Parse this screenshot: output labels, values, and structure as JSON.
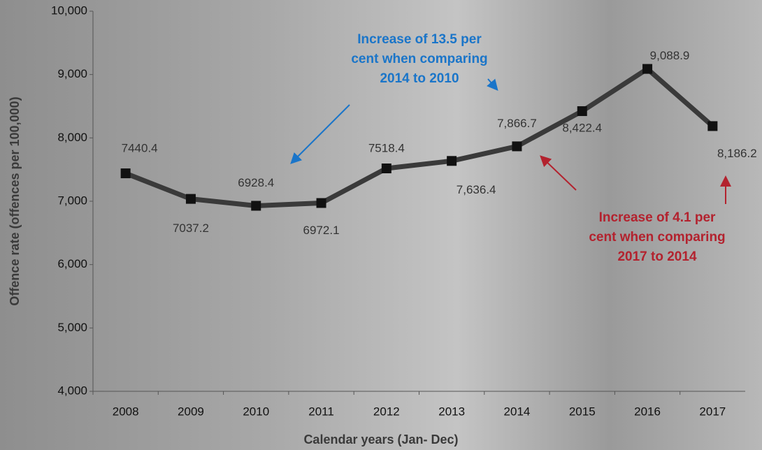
{
  "chart_data": {
    "type": "line",
    "y_label": "Offence rate (offences per 100,000)",
    "x_label": "Calendar years (Jan- Dec)",
    "categories": [
      "2008",
      "2009",
      "2010",
      "2011",
      "2012",
      "2013",
      "2014",
      "2015",
      "2016",
      "2017"
    ],
    "values": [
      7440.4,
      7037.2,
      6928.4,
      6972.1,
      7518.4,
      7636.4,
      7866.7,
      8422.4,
      9088.9,
      8186.2
    ],
    "value_labels": [
      "7440.4",
      "7037.2",
      "6928.4",
      "6972.1",
      "7518.4",
      "7,636.4",
      "7,866.7",
      "8,422.4",
      "9,088.9",
      "8,186.2"
    ],
    "color": "#3a3a3a",
    "ylim": [
      4000,
      10000
    ],
    "yticks": [
      {
        "value": 4000,
        "label": "4,000"
      },
      {
        "value": 5000,
        "label": "5,000"
      },
      {
        "value": 6000,
        "label": "6,000"
      },
      {
        "value": 7000,
        "label": "7,000"
      },
      {
        "value": 8000,
        "label": "8,000"
      },
      {
        "value": 9000,
        "label": "9,000"
      },
      {
        "value": 10000,
        "label": "10,000"
      }
    ],
    "annotations": [
      {
        "lines": [
          "Increase of 13.5 per",
          "cent when comparing",
          "2014 to 2010"
        ],
        "color": "#1a75c9"
      },
      {
        "lines": [
          "Increase of 4.1 per",
          "cent when comparing",
          "2017 to 2014"
        ],
        "color": "#b3222e"
      }
    ]
  }
}
